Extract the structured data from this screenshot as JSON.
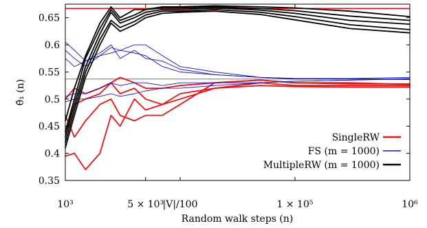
{
  "chart_data": {
    "type": "line",
    "xlabel": "Random walk steps (n)",
    "ylabel": "θ̂₁ (n)",
    "xscale": "log",
    "xlim": [
      1000,
      1000000
    ],
    "ylim": [
      0.35,
      0.675
    ],
    "x_ticks": [
      {
        "value": 1000,
        "label": "10³"
      },
      {
        "value": 5000,
        "label": "5 × 10³"
      },
      {
        "value": 10000,
        "label": "|V|/100"
      },
      {
        "value": 100000,
        "label": "1 × 10⁵"
      },
      {
        "value": 1000000,
        "label": "10⁶"
      }
    ],
    "y_ticks": [
      0.35,
      0.4,
      0.45,
      0.5,
      0.55,
      0.6,
      0.65
    ],
    "legend_position": "bottom-right",
    "reference_lines": [
      {
        "y": 0.667,
        "color": "#ee1111"
      },
      {
        "y": 0.537,
        "color": "#777777"
      }
    ],
    "series": [
      {
        "name": "SingleRW",
        "color": "#ee1111",
        "width": 1.8,
        "runs": [
          {
            "x": [
              1000,
              1200,
              1500,
              2000,
              2500,
              3000,
              4000,
              5000,
              7000,
              10000,
              20000,
              50000,
              100000,
              300000,
              1000000
            ],
            "y": [
              0.395,
              0.4,
              0.37,
              0.4,
              0.47,
              0.45,
              0.5,
              0.48,
              0.49,
              0.5,
              0.52,
              0.53,
              0.525,
              0.525,
              0.525
            ]
          },
          {
            "x": [
              1000,
              1200,
              1500,
              2000,
              2500,
              3000,
              4000,
              5000,
              7000,
              10000,
              20000,
              50000,
              100000,
              300000,
              1000000
            ],
            "y": [
              0.47,
              0.43,
              0.46,
              0.49,
              0.5,
              0.47,
              0.46,
              0.47,
              0.47,
              0.49,
              0.53,
              0.535,
              0.53,
              0.53,
              0.527
            ]
          },
          {
            "x": [
              1000,
              1200,
              1500,
              2000,
              2500,
              3000,
              4000,
              5000,
              7000,
              10000,
              20000,
              50000,
              100000,
              300000,
              1000000
            ],
            "y": [
              0.44,
              0.49,
              0.5,
              0.51,
              0.53,
              0.51,
              0.52,
              0.5,
              0.49,
              0.51,
              0.52,
              0.525,
              0.523,
              0.522,
              0.522
            ]
          },
          {
            "x": [
              1000,
              1200,
              1500,
              2000,
              2500,
              3000,
              4000,
              5000,
              7000,
              10000,
              20000,
              50000,
              100000,
              300000,
              1000000
            ],
            "y": [
              0.5,
              0.52,
              0.51,
              0.52,
              0.53,
              0.54,
              0.53,
              0.52,
              0.52,
              0.525,
              0.53,
              0.535,
              0.53,
              0.528,
              0.528
            ]
          }
        ]
      },
      {
        "name": "FS (m = 1000)",
        "color": "#1111cc",
        "width": 0.9,
        "runs": [
          {
            "x": [
              1000,
              1200,
              1500,
              2000,
              2500,
              3000,
              4000,
              5000,
              7000,
              10000,
              20000,
              50000,
              100000,
              300000,
              1000000
            ],
            "y": [
              0.605,
              0.59,
              0.57,
              0.58,
              0.585,
              0.59,
              0.585,
              0.58,
              0.56,
              0.55,
              0.545,
              0.54,
              0.538,
              0.538,
              0.54
            ]
          },
          {
            "x": [
              1000,
              1200,
              1500,
              2000,
              2500,
              3000,
              4000,
              5000,
              7000,
              10000,
              20000,
              50000,
              100000,
              300000,
              1000000
            ],
            "y": [
              0.59,
              0.575,
              0.56,
              0.58,
              0.595,
              0.59,
              0.6,
              0.6,
              0.58,
              0.56,
              0.55,
              0.54,
              0.537,
              0.537,
              0.537
            ]
          },
          {
            "x": [
              1000,
              1200,
              1500,
              2000,
              2500,
              3000,
              4000,
              5000,
              7000,
              10000,
              20000,
              50000,
              100000,
              300000,
              1000000
            ],
            "y": [
              0.575,
              0.56,
              0.57,
              0.585,
              0.6,
              0.575,
              0.59,
              0.575,
              0.57,
              0.555,
              0.545,
              0.54,
              0.538,
              0.537,
              0.536
            ]
          },
          {
            "x": [
              1000,
              1200,
              1500,
              2000,
              2500,
              3000,
              4000,
              5000,
              7000,
              10000,
              20000,
              50000,
              100000,
              300000,
              1000000
            ],
            "y": [
              0.505,
              0.51,
              0.51,
              0.52,
              0.53,
              0.525,
              0.53,
              0.53,
              0.525,
              0.53,
              0.53,
              0.53,
              0.533,
              0.535,
              0.537
            ]
          },
          {
            "x": [
              1000,
              1200,
              1500,
              2000,
              2500,
              3000,
              4000,
              5000,
              7000,
              10000,
              20000,
              50000,
              100000,
              300000,
              1000000
            ],
            "y": [
              0.495,
              0.5,
              0.5,
              0.505,
              0.51,
              0.505,
              0.51,
              0.515,
              0.52,
              0.52,
              0.525,
              0.53,
              0.533,
              0.535,
              0.538
            ]
          }
        ]
      },
      {
        "name": "MultipleRW (m = 1000)",
        "color": "#000000",
        "width": 1.8,
        "runs": [
          {
            "x": [
              1000,
              1200,
              1500,
              2000,
              2500,
              3000,
              4000,
              5000,
              7000,
              10000,
              20000,
              50000,
              100000,
              300000,
              1000000
            ],
            "y": [
              0.46,
              0.52,
              0.58,
              0.64,
              0.67,
              0.65,
              0.665,
              0.665,
              0.67,
              0.67,
              0.672,
              0.67,
              0.668,
              0.662,
              0.652
            ]
          },
          {
            "x": [
              1000,
              1200,
              1500,
              2000,
              2500,
              3000,
              4000,
              5000,
              7000,
              10000,
              20000,
              50000,
              100000,
              300000,
              1000000
            ],
            "y": [
              0.44,
              0.5,
              0.575,
              0.63,
              0.665,
              0.645,
              0.655,
              0.665,
              0.668,
              0.668,
              0.67,
              0.667,
              0.663,
              0.653,
              0.645
            ]
          },
          {
            "x": [
              1000,
              1200,
              1500,
              2000,
              2500,
              3000,
              4000,
              5000,
              7000,
              10000,
              20000,
              50000,
              100000,
              300000,
              1000000
            ],
            "y": [
              0.43,
              0.49,
              0.56,
              0.62,
              0.66,
              0.64,
              0.65,
              0.66,
              0.665,
              0.665,
              0.668,
              0.664,
              0.658,
              0.645,
              0.638
            ]
          },
          {
            "x": [
              1000,
              1200,
              1500,
              2000,
              2500,
              3000,
              4000,
              5000,
              7000,
              10000,
              20000,
              50000,
              100000,
              300000,
              1000000
            ],
            "y": [
              0.42,
              0.48,
              0.55,
              0.61,
              0.645,
              0.632,
              0.643,
              0.655,
              0.662,
              0.662,
              0.665,
              0.66,
              0.652,
              0.637,
              0.628
            ]
          },
          {
            "x": [
              1000,
              1200,
              1500,
              2000,
              2500,
              3000,
              4000,
              5000,
              7000,
              10000,
              20000,
              50000,
              100000,
              300000,
              1000000
            ],
            "y": [
              0.41,
              0.47,
              0.54,
              0.6,
              0.64,
              0.625,
              0.637,
              0.65,
              0.658,
              0.66,
              0.662,
              0.656,
              0.646,
              0.63,
              0.622
            ]
          }
        ]
      }
    ]
  }
}
